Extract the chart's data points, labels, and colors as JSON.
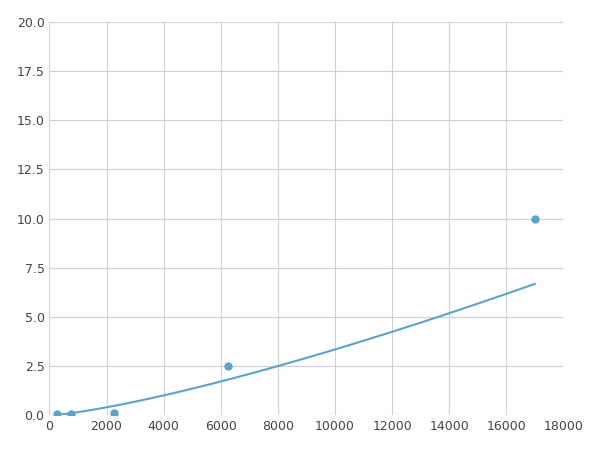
{
  "x": [
    250,
    750,
    2250,
    6250,
    17000
  ],
  "y": [
    0.05,
    0.1,
    0.15,
    2.5,
    10.0
  ],
  "line_color": "#5ba3c9",
  "marker_color": "#5ba3c9",
  "marker_size": 5,
  "linewidth": 1.5,
  "xlim": [
    0,
    18000
  ],
  "ylim": [
    0,
    20
  ],
  "xticks": [
    0,
    2000,
    4000,
    6000,
    8000,
    10000,
    12000,
    14000,
    16000,
    18000
  ],
  "yticks": [
    0.0,
    2.5,
    5.0,
    7.5,
    10.0,
    12.5,
    15.0,
    17.5,
    20.0
  ],
  "grid_color": "#d0d0d0",
  "bg_color": "#ffffff",
  "fig_bg_color": "#ffffff"
}
